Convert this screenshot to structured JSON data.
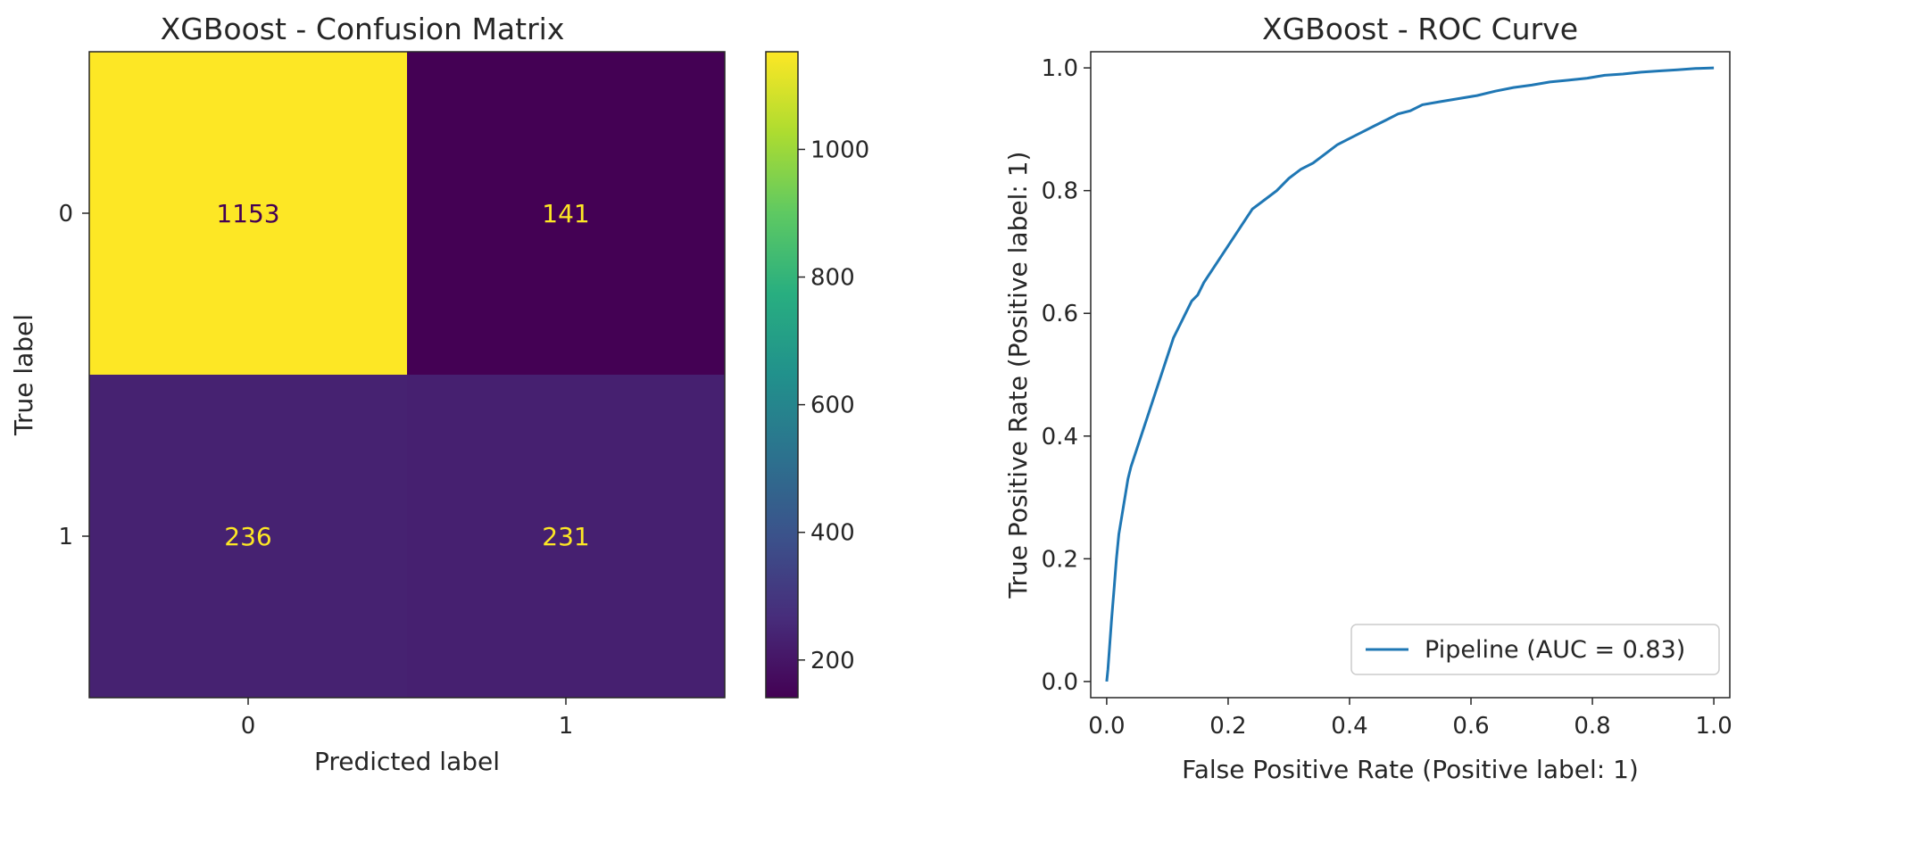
{
  "chart_data": [
    {
      "type": "heatmap",
      "title": "XGBoost - Confusion Matrix",
      "xlabel": "Predicted label",
      "ylabel": "True label",
      "x_categories": [
        "0",
        "1"
      ],
      "y_categories": [
        "0",
        "1"
      ],
      "values": [
        [
          1153,
          141
        ],
        [
          236,
          231
        ]
      ],
      "colormap": "viridis",
      "colorbar": {
        "range": [
          141,
          1153
        ],
        "ticks": [
          200,
          400,
          600,
          800,
          1000
        ],
        "tick_labels": [
          "200",
          "400",
          "600",
          "800",
          "1000"
        ]
      },
      "colors": {
        "high": "#fde725",
        "low": "#440154"
      }
    },
    {
      "type": "line",
      "title": "XGBoost - ROC Curve",
      "xlabel": "False Positive Rate (Positive label: 1)",
      "ylabel": "True Positive Rate (Positive label: 1)",
      "xlim": [
        0.0,
        1.0
      ],
      "ylim": [
        0.0,
        1.0
      ],
      "xticks": [
        "0.0",
        "0.2",
        "0.4",
        "0.6",
        "0.8",
        "1.0"
      ],
      "yticks": [
        "0.0",
        "0.2",
        "0.4",
        "0.6",
        "0.8",
        "1.0"
      ],
      "grid": false,
      "legend": "lower-right",
      "series": [
        {
          "name": "Pipeline (AUC = 0.83)",
          "color": "#1f77b4",
          "x": [
            0.0,
            0.002,
            0.005,
            0.008,
            0.012,
            0.016,
            0.02,
            0.025,
            0.03,
            0.035,
            0.04,
            0.05,
            0.06,
            0.07,
            0.08,
            0.09,
            0.1,
            0.11,
            0.12,
            0.13,
            0.14,
            0.15,
            0.16,
            0.18,
            0.2,
            0.22,
            0.24,
            0.26,
            0.28,
            0.3,
            0.32,
            0.34,
            0.36,
            0.38,
            0.4,
            0.42,
            0.44,
            0.46,
            0.48,
            0.5,
            0.52,
            0.55,
            0.58,
            0.61,
            0.64,
            0.67,
            0.7,
            0.73,
            0.76,
            0.79,
            0.82,
            0.85,
            0.88,
            0.91,
            0.94,
            0.97,
            1.0
          ],
          "y": [
            0.0,
            0.02,
            0.06,
            0.1,
            0.15,
            0.2,
            0.24,
            0.27,
            0.3,
            0.33,
            0.35,
            0.38,
            0.41,
            0.44,
            0.47,
            0.5,
            0.53,
            0.56,
            0.58,
            0.6,
            0.62,
            0.63,
            0.65,
            0.68,
            0.71,
            0.74,
            0.77,
            0.785,
            0.8,
            0.82,
            0.835,
            0.845,
            0.86,
            0.875,
            0.885,
            0.895,
            0.905,
            0.915,
            0.925,
            0.93,
            0.94,
            0.945,
            0.95,
            0.955,
            0.962,
            0.968,
            0.972,
            0.977,
            0.98,
            0.983,
            0.988,
            0.99,
            0.993,
            0.995,
            0.997,
            0.999,
            1.0
          ]
        }
      ]
    }
  ]
}
